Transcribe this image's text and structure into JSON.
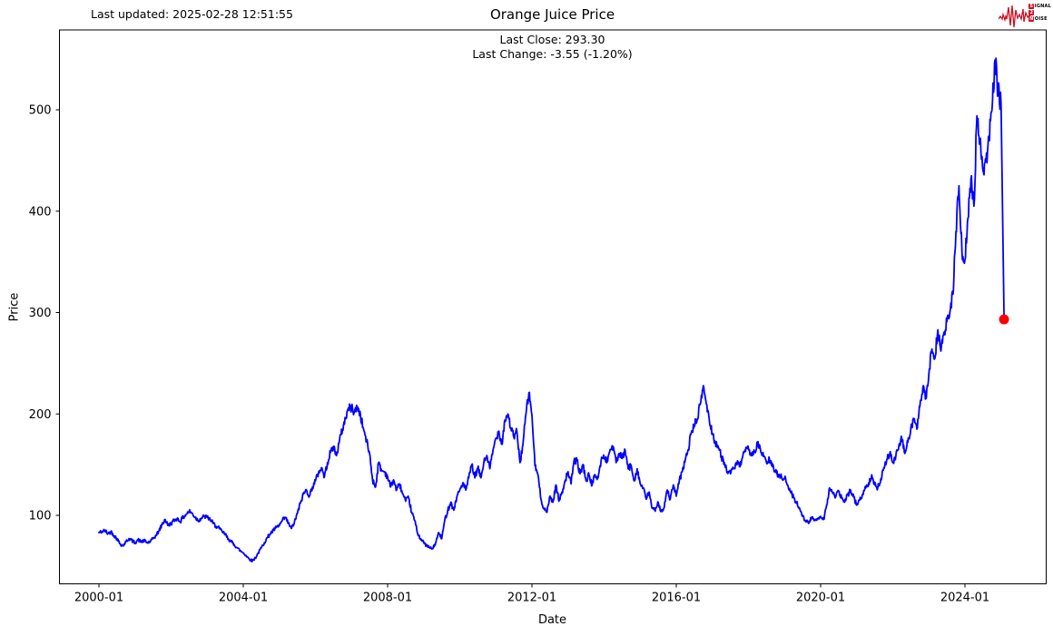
{
  "meta": {
    "last_updated": "Last updated: 2025-02-28 12:51:55"
  },
  "logo": {
    "color": "#cc1122",
    "rows": [
      {
        "boxed": "S",
        "rest": "IGNAL"
      },
      {
        "boxed": "2",
        "rest": ""
      },
      {
        "boxed": "N",
        "rest": "OISE"
      }
    ]
  },
  "chart_data": {
    "type": "line",
    "title": "Orange Juice Price",
    "subtitle_line1": "Last Close: 293.30",
    "subtitle_line2": "Last Change: -3.55 (-1.20%)",
    "last_close": 293.3,
    "last_change": -3.55,
    "last_change_pct": "-1.20%",
    "xlabel": "Date",
    "ylabel": "Price",
    "x_ticks": [
      "2000-01",
      "2004-01",
      "2008-01",
      "2012-01",
      "2016-01",
      "2020-01",
      "2024-01"
    ],
    "y_ticks": [
      100,
      200,
      300,
      400,
      500
    ],
    "ylim": [
      30,
      575
    ],
    "grid": false,
    "legend": "none",
    "line_color": "#0000ff",
    "marker_color": "#ff0000",
    "series": {
      "name": "Orange Juice Price",
      "start": "2000-01",
      "interval": "monthly",
      "values": [
        83,
        84,
        85,
        82,
        84,
        80,
        77,
        72,
        70,
        74,
        77,
        75,
        73,
        76,
        74,
        75,
        73,
        74,
        77,
        80,
        85,
        91,
        96,
        90,
        92,
        95,
        97,
        94,
        98,
        101,
        104,
        102,
        98,
        95,
        97,
        99,
        98,
        96,
        92,
        89,
        87,
        84,
        81,
        77,
        74,
        71,
        68,
        65,
        63,
        60,
        57,
        55,
        58,
        63,
        68,
        73,
        78,
        82,
        85,
        88,
        90,
        95,
        98,
        92,
        87,
        93,
        102,
        112,
        121,
        125,
        119,
        128,
        134,
        142,
        147,
        138,
        152,
        162,
        168,
        159,
        174,
        185,
        196,
        206,
        206,
        202,
        207,
        198,
        185,
        173,
        161,
        135,
        128,
        152,
        144,
        143,
        138,
        128,
        135,
        125,
        131,
        121,
        114,
        117,
        103,
        95,
        82,
        77,
        73,
        70,
        68,
        67,
        73,
        83,
        77,
        95,
        105,
        113,
        105,
        118,
        125,
        132,
        125,
        137,
        150,
        137,
        147,
        137,
        152,
        159,
        146,
        163,
        176,
        183,
        170,
        194,
        200,
        186,
        177,
        183,
        152,
        170,
        200,
        221,
        199,
        149,
        140,
        116,
        107,
        103,
        119,
        113,
        130,
        114,
        123,
        134,
        143,
        131,
        154,
        154,
        141,
        150,
        134,
        140,
        130,
        140,
        137,
        154,
        158,
        153,
        165,
        168,
        152,
        161,
        156,
        164,
        146,
        149,
        134,
        146,
        131,
        127,
        116,
        123,
        107,
        104,
        113,
        104,
        108,
        125,
        116,
        130,
        119,
        134,
        143,
        155,
        165,
        182,
        189,
        195,
        210,
        228,
        210,
        194,
        181,
        172,
        167,
        158,
        152,
        143,
        141,
        146,
        152,
        148,
        157,
        163,
        166,
        160,
        163,
        170,
        165,
        158,
        152,
        155,
        148,
        143,
        140,
        138,
        137,
        130,
        123,
        118,
        112,
        107,
        100,
        95,
        92,
        98,
        95,
        97,
        99,
        96,
        110,
        127,
        122,
        118,
        124,
        117,
        113,
        120,
        125,
        118,
        110,
        115,
        121,
        127,
        132,
        140,
        130,
        127,
        136,
        147,
        155,
        161,
        152,
        158,
        168,
        176,
        161,
        172,
        186,
        195,
        185,
        207,
        226,
        215,
        240,
        264,
        255,
        283,
        262,
        280,
        291,
        300,
        318,
        380,
        425,
        360,
        352,
        393,
        432,
        405,
        494,
        470,
        440,
        449,
        474,
        500,
        549,
        520,
        505,
        293.3
      ]
    }
  }
}
